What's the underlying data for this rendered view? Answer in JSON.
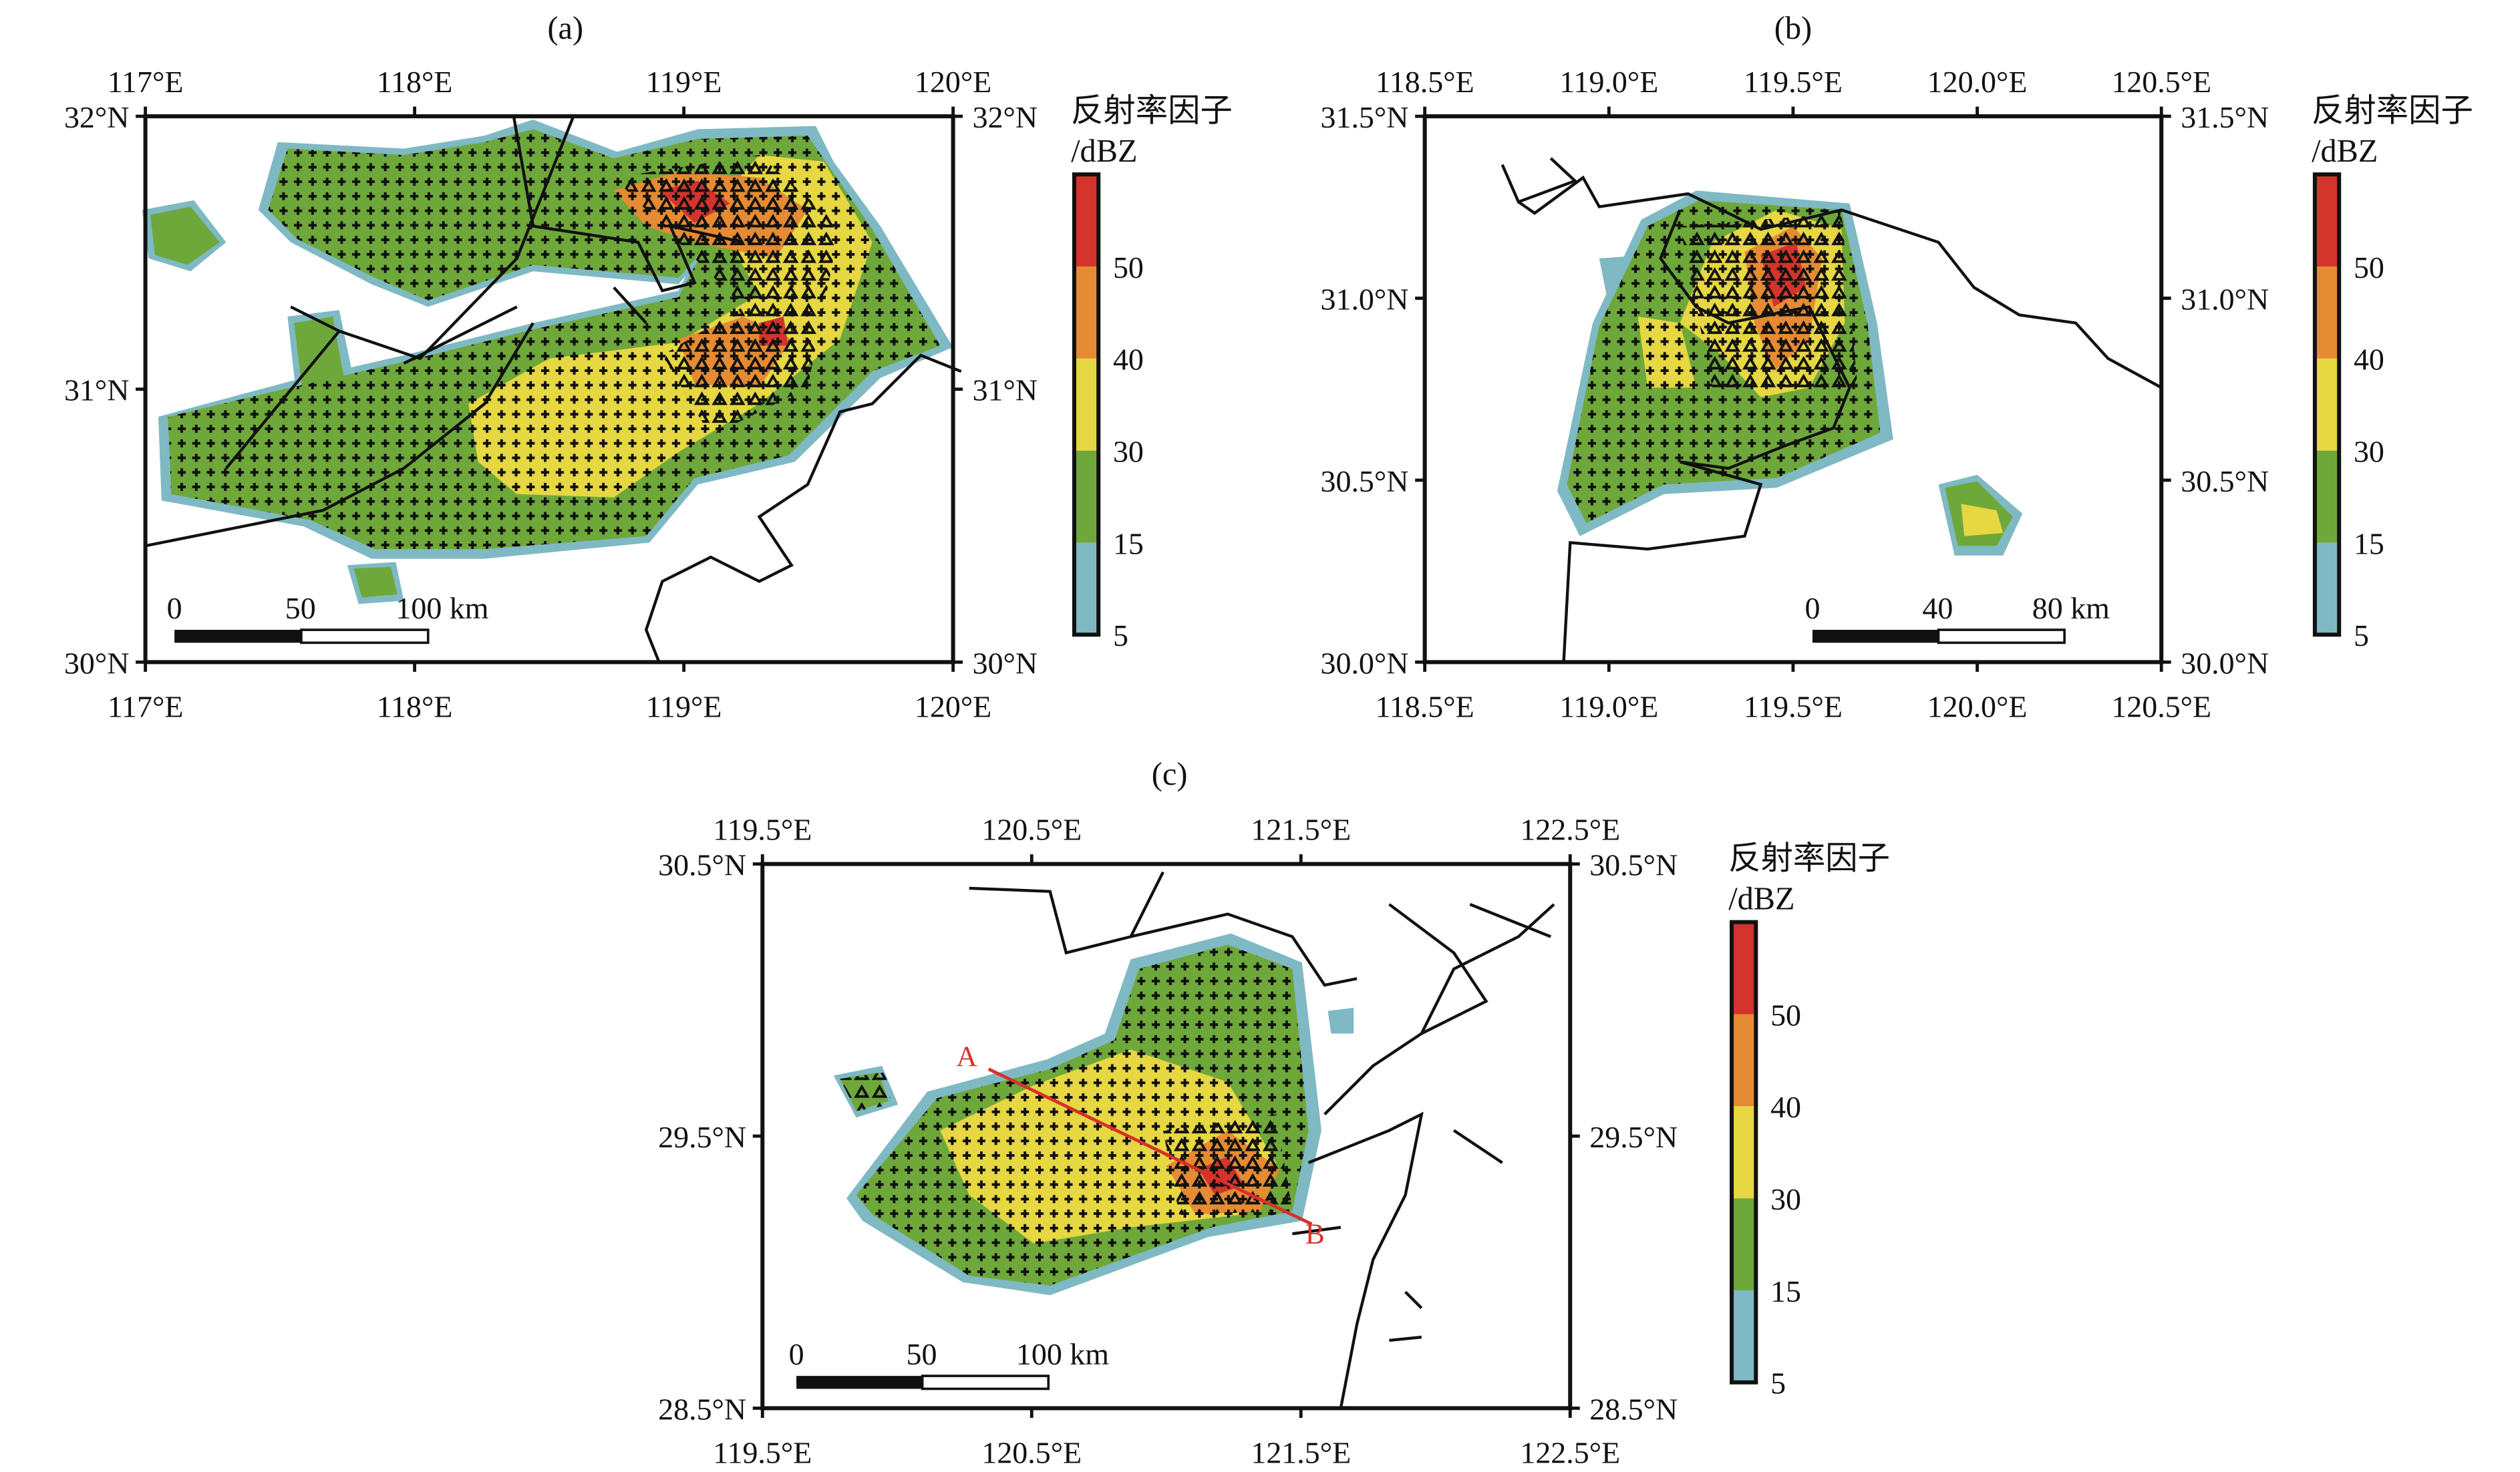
{
  "panels": [
    {
      "id": "a",
      "title": "(a)",
      "lon_range": [
        117,
        120
      ],
      "lat_range": [
        30,
        32
      ],
      "lon_ticks": [
        {
          "v": 117,
          "label": "117°E"
        },
        {
          "v": 118,
          "label": "118°E"
        },
        {
          "v": 119,
          "label": "119°E"
        },
        {
          "v": 120,
          "label": "120°E"
        }
      ],
      "lat_ticks": [
        {
          "v": 30,
          "label": "30°N"
        },
        {
          "v": 31,
          "label": "31°N"
        },
        {
          "v": 32,
          "label": "32°N"
        }
      ],
      "scalebar": {
        "labels": [
          "0",
          "50",
          "100 km"
        ]
      }
    },
    {
      "id": "b",
      "title": "(b)",
      "lon_range": [
        118.5,
        120.5
      ],
      "lat_range": [
        30.0,
        31.5
      ],
      "lon_ticks": [
        {
          "v": 118.5,
          "label": "118.5°E"
        },
        {
          "v": 119.0,
          "label": "119.0°E"
        },
        {
          "v": 119.5,
          "label": "119.5°E"
        },
        {
          "v": 120.0,
          "label": "120.0°E"
        },
        {
          "v": 120.5,
          "label": "120.5°E"
        }
      ],
      "lat_ticks": [
        {
          "v": 30.0,
          "label": "30.0°N"
        },
        {
          "v": 30.5,
          "label": "30.5°N"
        },
        {
          "v": 31.0,
          "label": "31.0°N"
        },
        {
          "v": 31.5,
          "label": "31.5°N"
        }
      ],
      "scalebar": {
        "labels": [
          "0",
          "40",
          "80 km"
        ]
      }
    },
    {
      "id": "c",
      "title": "(c)",
      "lon_range": [
        119.5,
        122.5
      ],
      "lat_range": [
        28.5,
        30.5
      ],
      "lon_ticks": [
        {
          "v": 119.5,
          "label": "119.5°E"
        },
        {
          "v": 120.5,
          "label": "120.5°E"
        },
        {
          "v": 121.5,
          "label": "121.5°E"
        },
        {
          "v": 122.5,
          "label": "122.5°E"
        }
      ],
      "lat_ticks": [
        {
          "v": 28.5,
          "label": "28.5°N"
        },
        {
          "v": 29.5,
          "label": "29.5°N"
        },
        {
          "v": 30.5,
          "label": "30.5°N"
        }
      ],
      "scalebar": {
        "labels": [
          "0",
          "50",
          "100 km"
        ]
      },
      "cross_section": {
        "start_label": "A",
        "end_label": "B"
      }
    }
  ],
  "colorbar": {
    "title": "反射率因子",
    "unit": "/dBZ",
    "labels": [
      "5",
      "15",
      "30",
      "40",
      "50"
    ],
    "colors": [
      "#7fb9c4",
      "#6ea83a",
      "#e6d743",
      "#e58b33",
      "#d3342c"
    ]
  },
  "colors": {
    "section_line": "#d9302a"
  }
}
